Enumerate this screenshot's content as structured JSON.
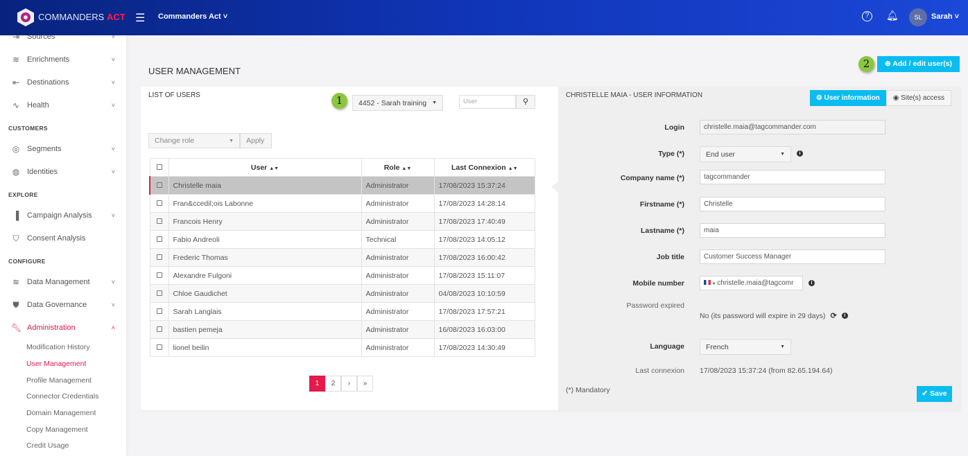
{
  "header": {
    "brand_a": "COMMANDERS",
    "brand_b": "ACT",
    "account": "Commanders Act",
    "user_initials": "SL",
    "user_name": "Sarah"
  },
  "sidebar": {
    "items_top": [
      {
        "label": "Sources",
        "icon": "sign-in-icon"
      },
      {
        "label": "Enrichments",
        "icon": "layers-plus-icon"
      },
      {
        "label": "Destinations",
        "icon": "sign-out-icon"
      },
      {
        "label": "Health",
        "icon": "pulse-icon"
      }
    ],
    "sections": [
      "CUSTOMERS",
      "EXPLORE",
      "CONFIGURE"
    ],
    "customers": [
      {
        "label": "Segments",
        "icon": "target-icon"
      },
      {
        "label": "Identities",
        "icon": "fingerprint-icon"
      }
    ],
    "explore": [
      {
        "label": "Campaign Analysis",
        "icon": "bar-chart-icon"
      },
      {
        "label": "Consent Analysis",
        "icon": "shield-check-icon"
      }
    ],
    "configure": [
      {
        "label": "Data Management",
        "icon": "layers-icon"
      },
      {
        "label": "Data Governance",
        "icon": "shield-icon"
      },
      {
        "label": "Administration",
        "icon": "wrench-icon"
      }
    ],
    "admin_sub": [
      "Modification History",
      "User Management",
      "Profile Management",
      "Connector Credentials",
      "Domain Management",
      "Copy Management",
      "Credit Usage"
    ]
  },
  "page": {
    "title": "USER MANAGEMENT",
    "add_button": "Add / edit user(s)",
    "badge1": "1",
    "badge2": "2"
  },
  "list": {
    "title": "LIST OF USERS",
    "site_select": "4452 - Sarah training",
    "search_placeholder": "User",
    "change_role": "Change role",
    "apply": "Apply",
    "columns": [
      "User",
      "Role",
      "Last Connexion"
    ],
    "rows": [
      [
        "Christelle maia",
        "Administrator",
        "17/08/2023 15:37:24"
      ],
      [
        "Fran&ccedil;ois Labonne",
        "Administrator",
        "17/08/2023 14:28:14"
      ],
      [
        "Francois Henry",
        "Administrator",
        "17/08/2023 17:40:49"
      ],
      [
        "Fabio Andreoli",
        "Technical",
        "17/08/2023 14:05:12"
      ],
      [
        "Frederic Thomas",
        "Administrator",
        "17/08/2023 16:00:42"
      ],
      [
        "Alexandre Fulgoni",
        "Administrator",
        "17/08/2023 15:11:07"
      ],
      [
        "Chloe Gaudichet",
        "Administrator",
        "04/08/2023 10:10:59"
      ],
      [
        "Sarah Langlais",
        "Administrator",
        "17/08/2023 17:57:21"
      ],
      [
        "bastien pemeja",
        "Administrator",
        "16/08/2023 16:03:00"
      ],
      [
        "lionel beilin",
        "Administrator",
        "17/08/2023 14:30:49"
      ]
    ],
    "pagination": [
      "1",
      "2",
      "›",
      "»"
    ]
  },
  "detail": {
    "title": "CHRISTELLE MAIA - USER INFORMATION",
    "tab_info": "User information",
    "tab_sites": "Site(s) access",
    "login_label": "Login",
    "login": "christelle.maia@tagcommander.com",
    "type_label": "Type (*)",
    "type": "End user",
    "company_label": "Company name (*)",
    "company": "tagcommander",
    "firstname_label": "Firstname (*)",
    "firstname": "Christelle",
    "lastname_label": "Lastname (*)",
    "lastname": "maia",
    "job_label": "Job title",
    "job": "Customer Success Manager",
    "mobile_label": "Mobile number",
    "mobile": "christelle.maia@tagcomr",
    "password_label": "Password expired",
    "password": "No (its password will expire in 29 days)",
    "language_label": "Language",
    "language": "French",
    "last_label": "Last connexion",
    "last": "17/08/2023 15:37:24 (from 82.65.194.64)",
    "mandatory": "(*) Mandatory",
    "save": "Save"
  },
  "colors": {
    "accent": "#e6194b",
    "primary": "#0abcf0",
    "header": "#0a2580"
  }
}
